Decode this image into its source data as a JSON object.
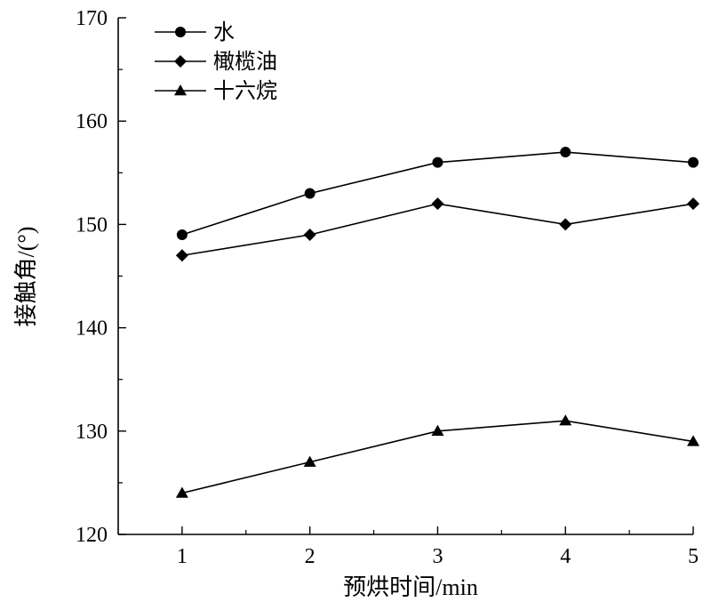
{
  "chart_data": {
    "type": "line",
    "xlabel": "预烘时间/min",
    "ylabel": "接触角/(°)",
    "x": [
      1,
      2,
      3,
      4,
      5
    ],
    "xlim": [
      0.5,
      5
    ],
    "ylim": [
      120,
      170
    ],
    "x_ticks": [
      "1",
      "2",
      "3",
      "4",
      "5"
    ],
    "y_ticks": [
      "120",
      "130",
      "140",
      "150",
      "160",
      "170"
    ],
    "legend_position": "top-left",
    "grid": false,
    "series": [
      {
        "name": "水",
        "marker": "circle",
        "values": [
          149,
          153,
          156,
          157,
          156
        ]
      },
      {
        "name": "橄榄油",
        "marker": "diamond",
        "values": [
          147,
          149,
          152,
          150,
          152
        ]
      },
      {
        "name": "十六烷",
        "marker": "triangle",
        "values": [
          124,
          127,
          130,
          131,
          129
        ]
      }
    ],
    "colors": {
      "line": "#000000",
      "marker": "#000000"
    }
  }
}
